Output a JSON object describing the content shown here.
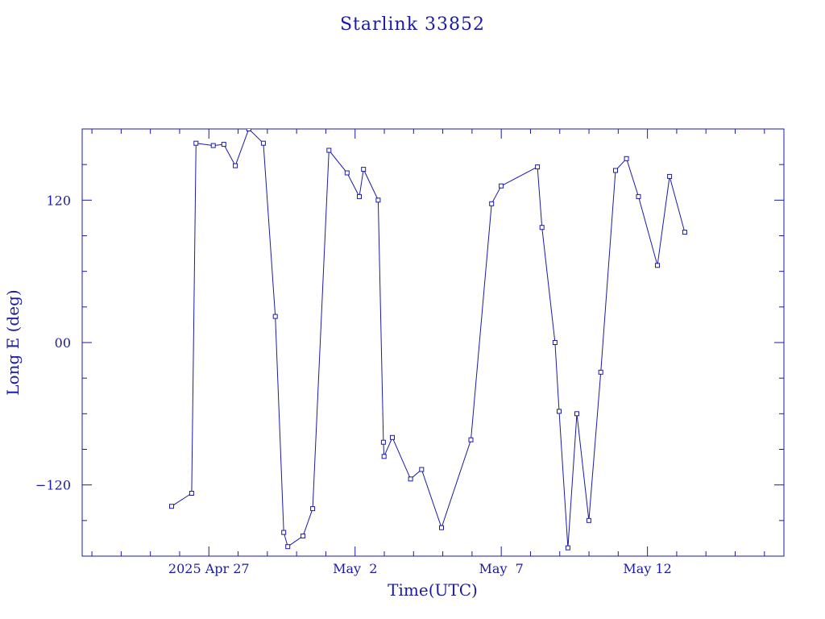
{
  "chart_data": {
    "type": "line",
    "title": "Starlink 33852",
    "xlabel": "Time(UTC)",
    "ylabel": "Long E (deg)",
    "xlim": [
      "2025-04-22T16:00",
      "2025-05-16T16:00"
    ],
    "ylim": [
      -180,
      180
    ],
    "yticks": [
      {
        "value": 120,
        "label": "120"
      },
      {
        "value": 0,
        "label": "00"
      },
      {
        "value": -120,
        "label": "−120"
      }
    ],
    "xticks": [
      {
        "value": "2025-04-27T00:00",
        "label": "2025 Apr 27"
      },
      {
        "value": "2025-05-02T00:00",
        "label": "May  2"
      },
      {
        "value": "2025-05-07T00:00",
        "label": "May  7"
      },
      {
        "value": "2025-05-12T00:00",
        "label": "May 12"
      }
    ],
    "grid": false,
    "color": "#1a1aa6",
    "series": [
      {
        "x": [
          "2025-04-25T17:26",
          "2025-04-26T09:51",
          "2025-04-26T13:26",
          "2025-04-27T03:34",
          "2025-04-27T12:17",
          "2025-04-27T21:43",
          "2025-04-28T08:44",
          "2025-04-28T20:45",
          "2025-04-29T06:30",
          "2025-04-29T13:26",
          "2025-04-29T16:46",
          "2025-04-30T05:17",
          "2025-04-30T13:12",
          "2025-05-01T02:35",
          "2025-05-01T17:26",
          "2025-05-02T03:29",
          "2025-05-02T06:55",
          "2025-05-02T18:57",
          "2025-05-02T23:15",
          "2025-05-02T23:47",
          "2025-05-03T06:35",
          "2025-05-03T21:32",
          "2025-05-04T06:35",
          "2025-05-04T22:58",
          "2025-05-05T23:05",
          "2025-05-06T16:05",
          "2025-05-06T23:55",
          "2025-05-08T05:43",
          "2025-05-08T09:24",
          "2025-05-08T20:09",
          "2025-05-08T23:31",
          "2025-05-09T06:41",
          "2025-05-09T14:04",
          "2025-05-09T23:53",
          "2025-05-10T09:41",
          "2025-05-10T21:47",
          "2025-05-11T06:46",
          "2025-05-11T16:40",
          "2025-05-12T08:10",
          "2025-05-12T18:10",
          "2025-05-13T06:35"
        ],
        "y": [
          -138,
          -127,
          168,
          166,
          167,
          149,
          180,
          168,
          22,
          -160,
          -172,
          -163,
          -140,
          162,
          143,
          123,
          146,
          120,
          -84,
          -96,
          -80,
          -115,
          -107,
          -156,
          -82,
          117,
          132,
          148,
          97,
          0,
          -58,
          -173,
          -60,
          -150,
          -25,
          145,
          155,
          123,
          65,
          140,
          93
        ]
      }
    ]
  }
}
